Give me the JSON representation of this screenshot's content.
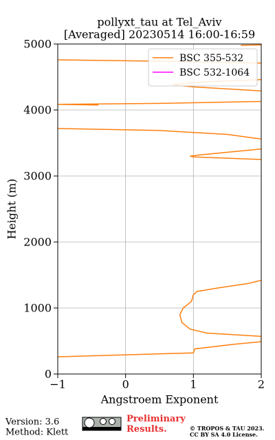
{
  "chart_data": {
    "type": "line",
    "title": "pollyxt_tau at Tel_Aviv",
    "subtitle": "[Averaged] 20230514 16:00-16:59",
    "xlabel": "Angstroem Exponent",
    "ylabel": "Height (m)",
    "y": [
      260,
      320,
      380,
      450,
      490,
      570,
      620,
      680,
      780,
      900,
      1000,
      1100,
      1200,
      1250,
      1310,
      1370,
      1420,
      1500,
      3250,
      3290,
      3300,
      3320,
      3390,
      3410,
      3500,
      3560,
      3630,
      3690,
      3720,
      3900,
      4075,
      4085,
      4100,
      4130,
      4200,
      4290,
      4350,
      4380,
      4420,
      4460,
      4600,
      4710,
      4740,
      4760,
      4900,
      4980,
      4985
    ],
    "series": [
      {
        "name": "BSC 355-532",
        "color": "#ff7f0e",
        "values": [
          -1,
          1.0,
          1.02,
          1.6,
          2.0,
          2.0,
          1.2,
          0.95,
          0.83,
          0.8,
          0.85,
          0.97,
          1.0,
          1.05,
          1.4,
          1.8,
          2.0,
          null,
          2.0,
          1.0,
          0.95,
          1.1,
          1.8,
          2.0,
          null,
          2.0,
          1.5,
          0.5,
          -1,
          null,
          -0.4,
          -1,
          0.5,
          2.0,
          null,
          2.0,
          1.0,
          0.7,
          1.0,
          2.0,
          null,
          2.0,
          0.5,
          -1,
          null,
          1.7,
          2.0
        ]
      },
      {
        "name": "BSC 532-1064",
        "color": "#ff00ff",
        "values": [
          null,
          null,
          null,
          null,
          null,
          null,
          null,
          null,
          null,
          null,
          null,
          null,
          null,
          null,
          null,
          null,
          null,
          null,
          null,
          null,
          null,
          null,
          null,
          null,
          null,
          null,
          null,
          null,
          null,
          null,
          null,
          null,
          null,
          null,
          null,
          null,
          null,
          null,
          null,
          null,
          null,
          null,
          null,
          null,
          null,
          null,
          null
        ]
      }
    ],
    "xlim": [
      -1,
      2
    ],
    "xticks": [
      {
        "value": -1,
        "label": "−1"
      },
      0,
      1,
      2
    ],
    "ylim": [
      0,
      5000
    ],
    "yticks": [
      0,
      1000,
      2000,
      3000,
      4000,
      5000
    ],
    "grid": true,
    "legend": "upper right"
  },
  "footer": {
    "version": "Version: 3.6",
    "method": "Method: Klett",
    "preliminary": "Preliminary Results.",
    "copyright": "© TROPOS & TAU 2023.",
    "license": "CC BY SA 4.0 License."
  }
}
